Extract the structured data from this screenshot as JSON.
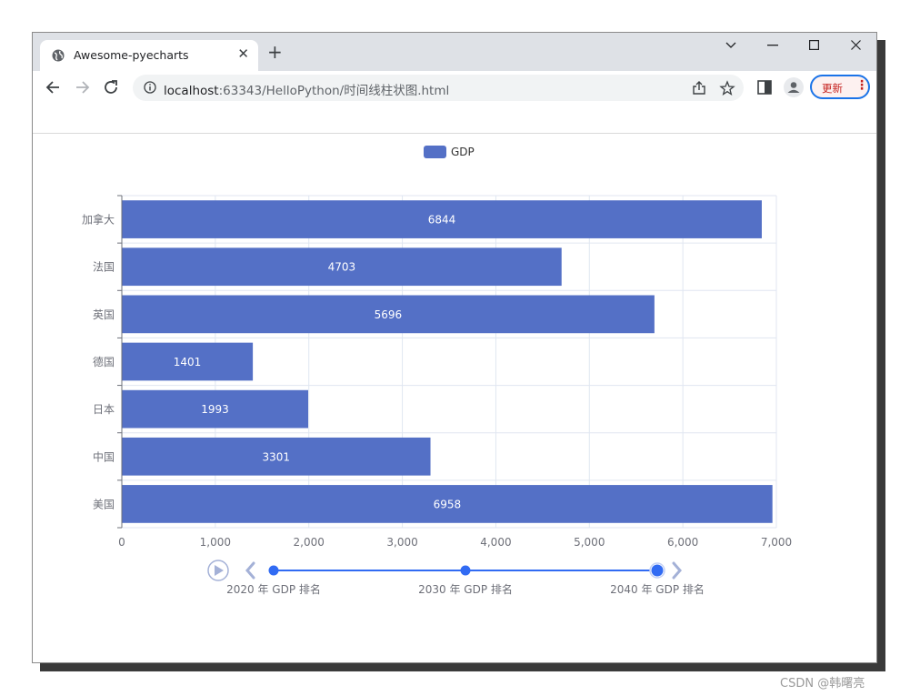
{
  "browser": {
    "tab_title": "Awesome-pyecharts",
    "tab_close": "✕",
    "new_tab": "+",
    "url_host": "localhost",
    "url_rest": ":63343/HelloPython/时间线柱状图.html",
    "update_label": "更新",
    "update_menu": "⋮",
    "icons": {
      "back": "arrow-left-icon",
      "forward": "arrow-right-icon",
      "reload": "reload-icon",
      "info": "info-icon",
      "share": "share-icon",
      "bookmark": "star-icon",
      "sidepanel": "side-panel-icon",
      "profile": "profile-icon"
    }
  },
  "chart_data": {
    "type": "bar",
    "orientation": "horizontal",
    "legend": [
      "GDP"
    ],
    "legend_position": "top-center",
    "series": [
      {
        "name": "GDP",
        "color": "#5470c6",
        "values": [
          6958,
          3301,
          1993,
          1401,
          5696,
          4703,
          6844
        ]
      }
    ],
    "categories": [
      "美国",
      "中国",
      "日本",
      "德国",
      "英国",
      "法国",
      "加拿大"
    ],
    "xlim": [
      0,
      7000
    ],
    "xticks": [
      "0",
      "1,000",
      "2,000",
      "3,000",
      "4,000",
      "5,000",
      "6,000",
      "7,000"
    ],
    "grid": true,
    "data_labels": "inside"
  },
  "timeline": {
    "items": [
      "2020 年 GDP 排名",
      "2030 年 GDP 排名",
      "2040 年 GDP 排名"
    ],
    "current_index": 2,
    "color": "#316bf3"
  },
  "watermark": "CSDN @韩曙亮"
}
